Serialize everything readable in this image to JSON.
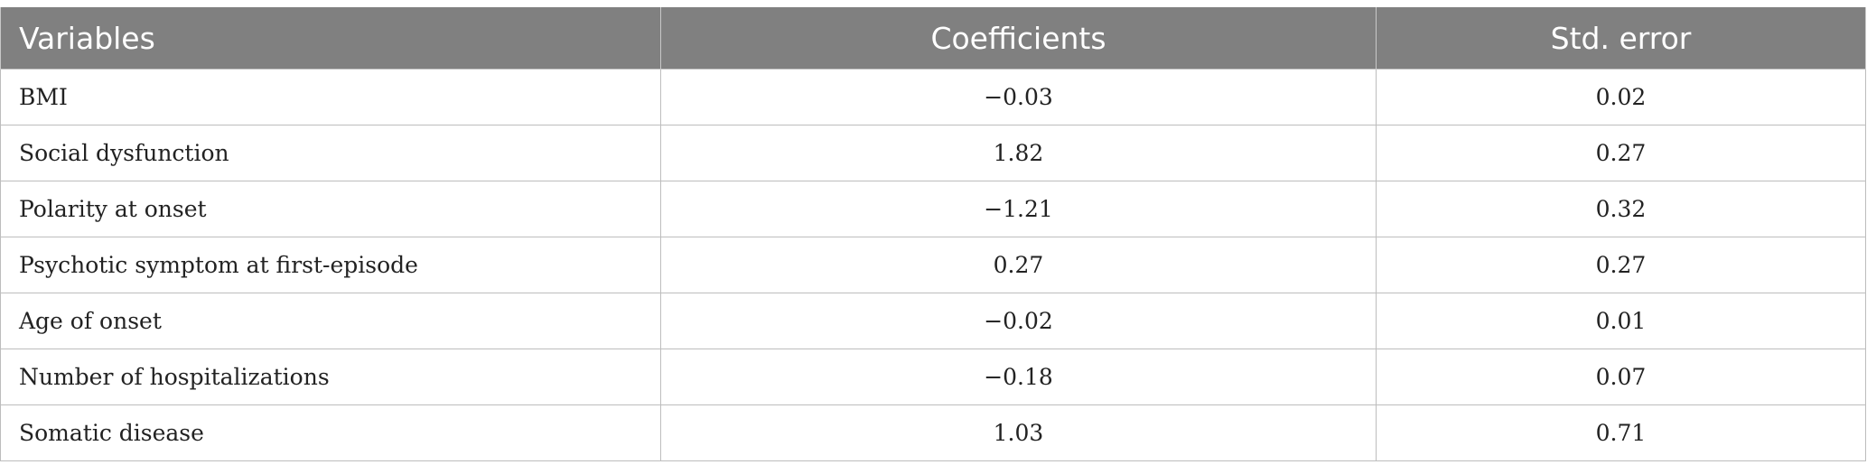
{
  "table": {
    "headers": [
      "Variables",
      "Coefficients",
      "Std. error"
    ],
    "rows": [
      {
        "variable": "BMI",
        "coefficient": "−0.03",
        "std_error": "0.02"
      },
      {
        "variable": "Social dysfunction",
        "coefficient": "1.82",
        "std_error": "0.27"
      },
      {
        "variable": "Polarity at onset",
        "coefficient": "−1.21",
        "std_error": "0.32"
      },
      {
        "variable": "Psychotic symptom at first-episode",
        "coefficient": "0.27",
        "std_error": "0.27"
      },
      {
        "variable": "Age of onset",
        "coefficient": "−0.02",
        "std_error": "0.01"
      },
      {
        "variable": "Number of hospitalizations",
        "coefficient": "−0.18",
        "std_error": "0.07"
      },
      {
        "variable": "Somatic disease",
        "coefficient": "1.03",
        "std_error": "0.71"
      }
    ]
  },
  "colors": {
    "header_bg": "#808080",
    "header_text": "#ffffff",
    "border": "#bdbdbd"
  }
}
